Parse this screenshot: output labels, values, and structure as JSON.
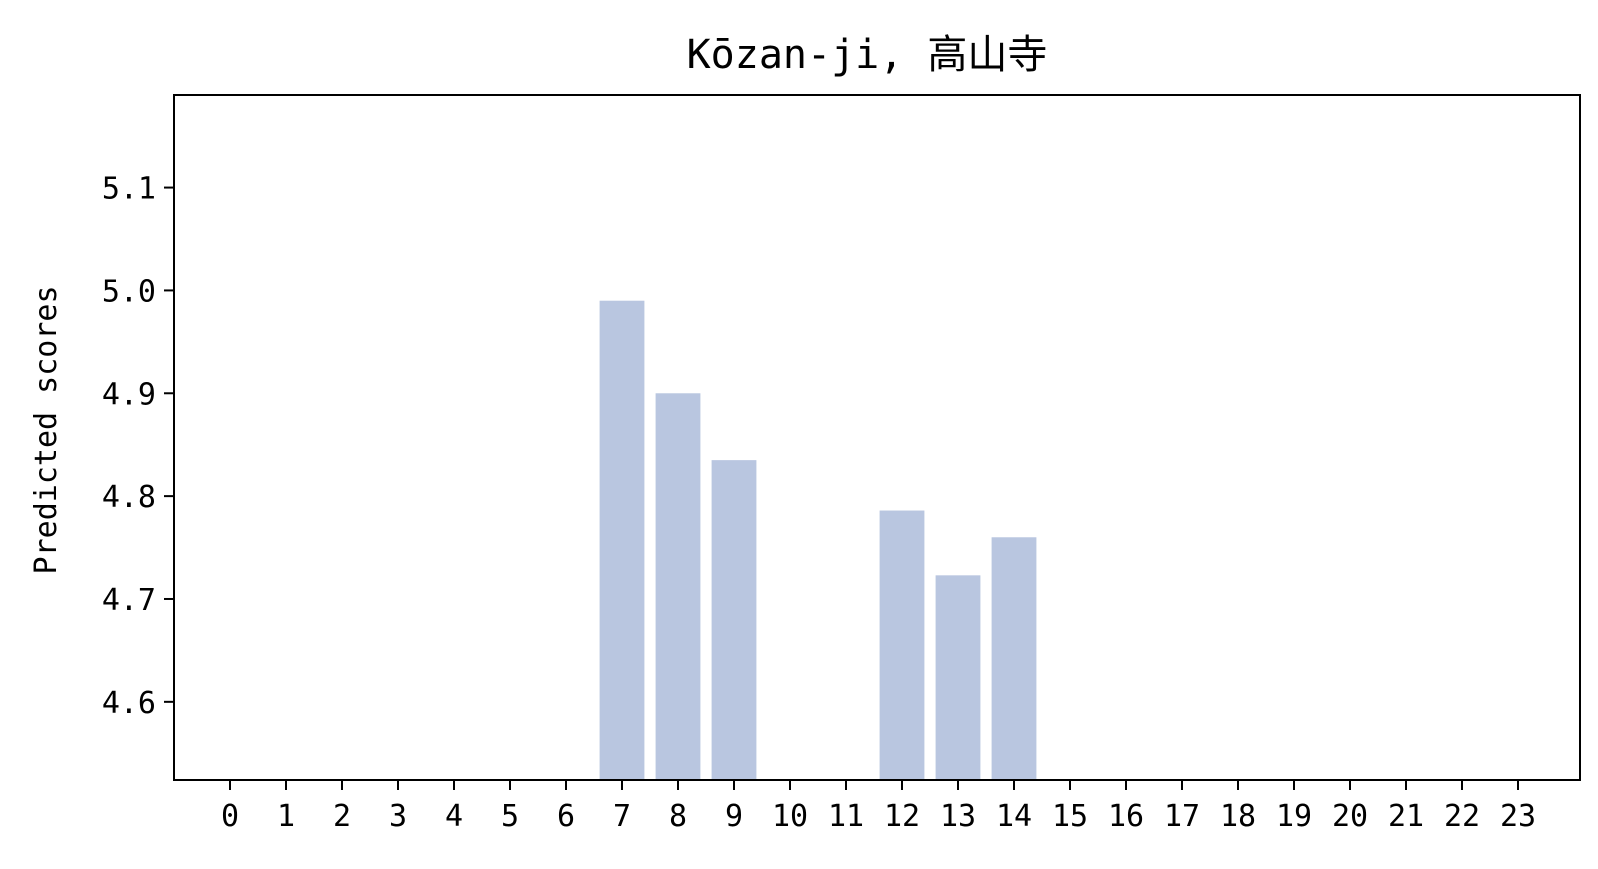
{
  "chart_data": {
    "type": "bar",
    "title": "Kōzan-ji, 高山寺",
    "xlabel": "",
    "ylabel": "Predicted scores",
    "categories": [
      "0",
      "1",
      "2",
      "3",
      "4",
      "5",
      "6",
      "7",
      "8",
      "9",
      "10",
      "11",
      "12",
      "13",
      "14",
      "15",
      "16",
      "17",
      "18",
      "19",
      "20",
      "21",
      "22",
      "23"
    ],
    "values": [
      null,
      null,
      null,
      null,
      null,
      null,
      null,
      4.99,
      4.9,
      4.835,
      null,
      null,
      4.786,
      4.723,
      4.76,
      null,
      null,
      null,
      null,
      null,
      null,
      null,
      null,
      null
    ],
    "ylim": [
      4.524,
      5.19
    ],
    "yticks": [
      "4.6",
      "4.7",
      "4.8",
      "4.9",
      "5.0",
      "5.1"
    ],
    "bar_color": "#b9c6e0",
    "grid": false
  }
}
